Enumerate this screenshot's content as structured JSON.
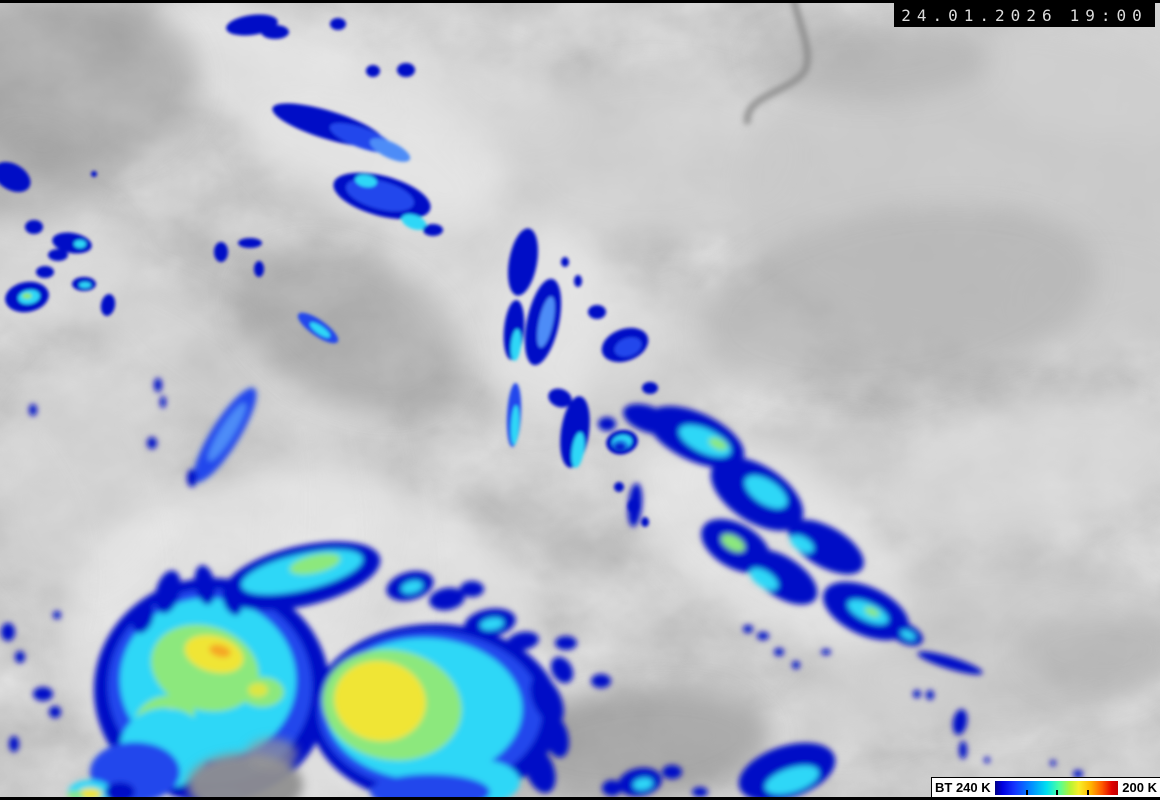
{
  "overlay": {
    "timestamp": {
      "date": "24.01.2026",
      "time": "19:00"
    },
    "legend": {
      "label_left": "BT 240 K",
      "label_right": "200 K",
      "gradient_css": "linear-gradient(90deg,#000086 0%,#0000e0 6%,#1535ff 16%,#0090ff 30%,#00dff0 42%,#4dff9f 52%,#b4f435 61%,#f7ef2a 68%,#ffb400 78%,#ff5a00 87%,#e00000 95%,#c00000 100%)",
      "tick_positions": [
        "25%",
        "50%",
        "75%"
      ]
    }
  },
  "palette": {
    "cold_blue": "#0009c6",
    "blue": "#2347ec",
    "cyan": "#2ed7f7",
    "green": "#8ce87d",
    "yellow": "#f0e535",
    "orange": "#f5a728",
    "background_gray": "#a6a6a6"
  }
}
